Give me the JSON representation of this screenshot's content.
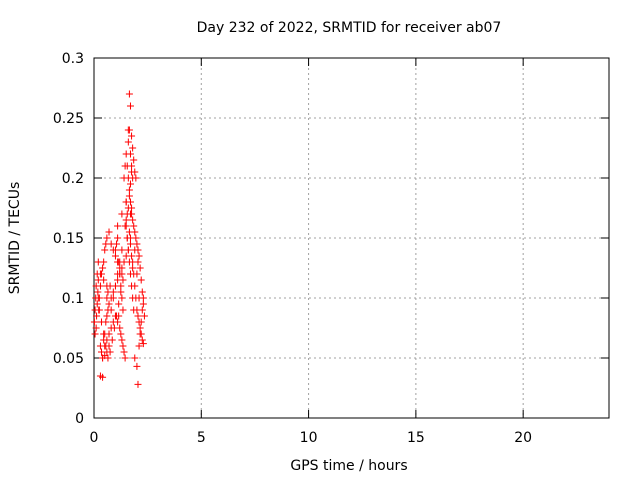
{
  "chart_data": {
    "type": "scatter",
    "title": "Day 232 of 2022, SRMTID for receiver ab07",
    "xlabel": "GPS time / hours",
    "ylabel": "SRMTID / TECUs",
    "xlim": [
      0,
      24
    ],
    "ylim": [
      0,
      0.3
    ],
    "xticks": [
      0,
      5,
      10,
      15,
      20
    ],
    "xtick_labels": [
      "0",
      "5",
      "10",
      "15",
      "20"
    ],
    "yticks": [
      0,
      0.05,
      0.1,
      0.15,
      0.2,
      0.25,
      0.3
    ],
    "ytick_labels": [
      "0",
      "0.05",
      "0.1",
      "0.15",
      "0.2",
      "0.25",
      "0.3"
    ],
    "grid": true,
    "marker": "+",
    "marker_color": "#ff0000",
    "series": [
      {
        "name": "SRMTID",
        "x": [
          0.02,
          0.05,
          0.08,
          0.1,
          0.12,
          0.15,
          0.18,
          0.2,
          0.22,
          0.25,
          0.05,
          0.1,
          0.15,
          0.2,
          0.3,
          0.35,
          0.4,
          0.45,
          0.5,
          0.55,
          0.6,
          0.65,
          0.3,
          0.35,
          0.4,
          0.45,
          0.5,
          0.55,
          0.6,
          0.65,
          0.7,
          0.75,
          0.3,
          0.4,
          0.5,
          0.6,
          0.7,
          0.8,
          0.9,
          1.0,
          0.4,
          0.5,
          0.6,
          0.7,
          0.8,
          0.9,
          1.0,
          1.1,
          1.2,
          1.3,
          0.6,
          0.7,
          0.8,
          0.9,
          1.0,
          1.1,
          1.2,
          1.3,
          0.8,
          0.9,
          1.0,
          1.1,
          1.2,
          1.3,
          1.4,
          1.5,
          1.0,
          1.05,
          1.1,
          1.15,
          1.2,
          1.25,
          1.3,
          1.35,
          1.1,
          1.15,
          1.2,
          1.25,
          1.3,
          1.35,
          1.4,
          1.45,
          1.4,
          1.45,
          1.5,
          1.55,
          1.6,
          1.65,
          1.7,
          1.75,
          1.5,
          1.55,
          1.6,
          1.65,
          1.7,
          1.75,
          1.8,
          1.85,
          1.6,
          1.65,
          1.7,
          1.75,
          1.8,
          1.85,
          1.9,
          1.95,
          1.7,
          1.75,
          1.8,
          1.85,
          1.9,
          1.95,
          2.0,
          2.05,
          1.8,
          1.85,
          1.9,
          1.95,
          2.0,
          2.05,
          2.1,
          2.15,
          1.9,
          2.0,
          2.05,
          2.1,
          2.15,
          2.2,
          2.25,
          2.3,
          2.0,
          2.05,
          2.1,
          2.15,
          2.2,
          2.25,
          2.3,
          2.35,
          1.5,
          1.55,
          1.6,
          1.65,
          1.7,
          1.75,
          1.45,
          1.5,
          1.55,
          1.6,
          1.65,
          1.7,
          1.75,
          1.8,
          1.6,
          1.65,
          1.7,
          1.75,
          1.8,
          0.2,
          0.25,
          0.35,
          0.45,
          0.55,
          0.65,
          0.75,
          0.85,
          0.95,
          1.05,
          1.15,
          1.25,
          1.35,
          0.3,
          0.45,
          0.6,
          1.1,
          1.3,
          1.5,
          1.7,
          1.9,
          2.1,
          2.2,
          2.25,
          2.3
        ],
        "y": [
          0.08,
          0.09,
          0.1,
          0.11,
          0.085,
          0.095,
          0.105,
          0.115,
          0.09,
          0.1,
          0.07,
          0.075,
          0.12,
          0.13,
          0.06,
          0.055,
          0.05,
          0.065,
          0.07,
          0.08,
          0.085,
          0.09,
          0.11,
          0.12,
          0.125,
          0.13,
          0.14,
          0.145,
          0.1,
          0.105,
          0.095,
          0.11,
          0.035,
          0.034,
          0.06,
          0.065,
          0.07,
          0.075,
          0.08,
          0.085,
          0.05,
          0.052,
          0.055,
          0.06,
          0.09,
          0.1,
          0.11,
          0.12,
          0.13,
          0.14,
          0.15,
          0.155,
          0.145,
          0.14,
          0.135,
          0.13,
          0.125,
          0.12,
          0.1,
          0.105,
          0.11,
          0.115,
          0.12,
          0.125,
          0.13,
          0.135,
          0.14,
          0.145,
          0.15,
          0.13,
          0.12,
          0.11,
          0.1,
          0.09,
          0.08,
          0.085,
          0.075,
          0.07,
          0.065,
          0.06,
          0.055,
          0.05,
          0.2,
          0.21,
          0.22,
          0.21,
          0.2,
          0.19,
          0.18,
          0.17,
          0.16,
          0.15,
          0.14,
          0.13,
          0.12,
          0.11,
          0.1,
          0.09,
          0.24,
          0.27,
          0.26,
          0.235,
          0.225,
          0.215,
          0.205,
          0.2,
          0.17,
          0.175,
          0.165,
          0.16,
          0.155,
          0.15,
          0.145,
          0.14,
          0.13,
          0.12,
          0.11,
          0.1,
          0.09,
          0.085,
          0.08,
          0.075,
          0.05,
          0.043,
          0.028,
          0.06,
          0.07,
          0.08,
          0.09,
          0.1,
          0.12,
          0.13,
          0.135,
          0.125,
          0.115,
          0.105,
          0.095,
          0.085,
          0.18,
          0.17,
          0.175,
          0.185,
          0.195,
          0.205,
          0.16,
          0.165,
          0.15,
          0.14,
          0.155,
          0.145,
          0.135,
          0.125,
          0.23,
          0.24,
          0.22,
          0.21,
          0.2,
          0.1,
          0.09,
          0.08,
          0.07,
          0.06,
          0.05,
          0.055,
          0.065,
          0.075,
          0.085,
          0.095,
          0.105,
          0.115,
          0.12,
          0.115,
          0.11,
          0.16,
          0.17,
          0.18,
          0.15,
          0.14,
          0.1,
          0.07,
          0.065,
          0.062
        ]
      }
    ]
  }
}
